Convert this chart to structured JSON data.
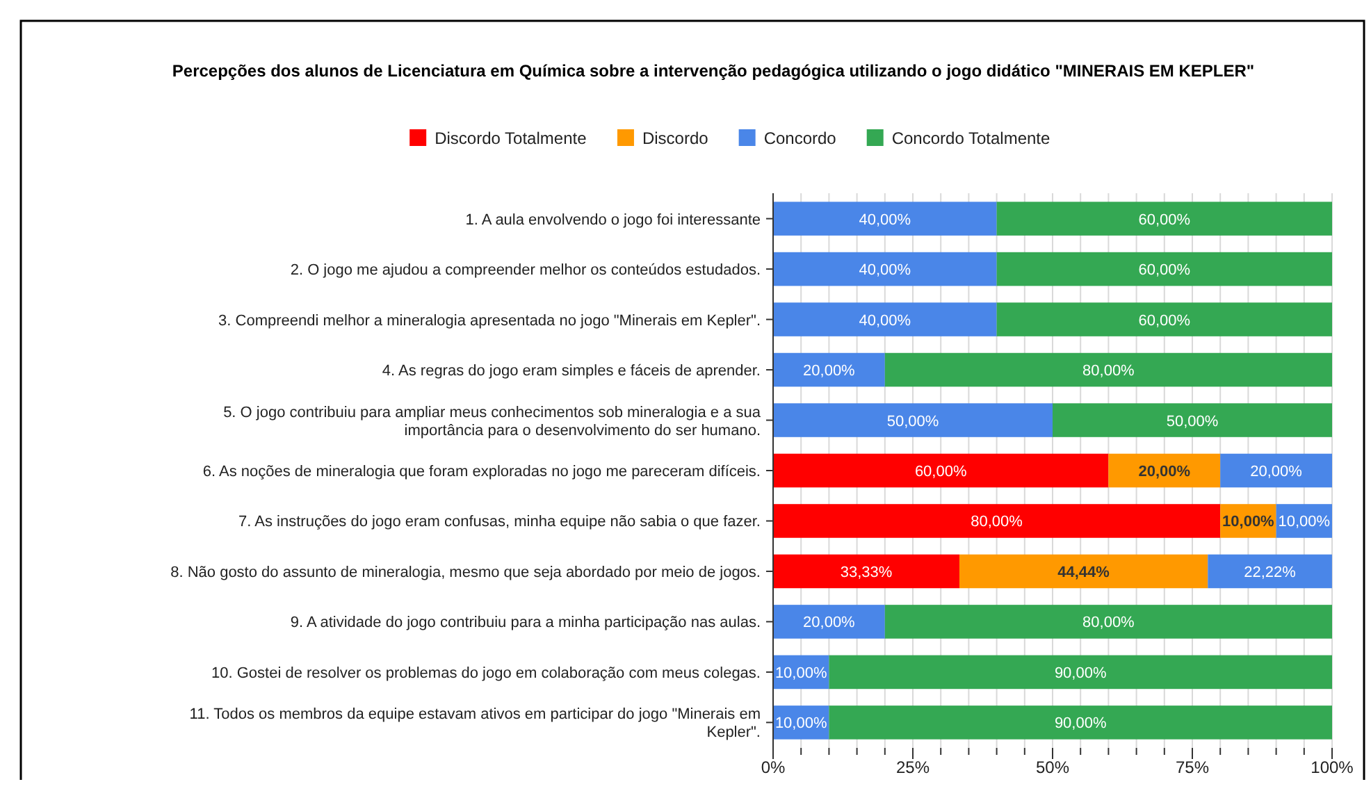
{
  "chart_data": {
    "type": "bar",
    "orientation": "horizontal",
    "stacked": true,
    "title": "Percepções dos alunos de Licenciatura em Química sobre a intervenção pedagógica utilizando o jogo didático \"MINERAIS EM KEPLER\"",
    "categories": [
      "1. A aula envolvendo o jogo foi interessante",
      "2. O jogo me ajudou a compreender melhor os conteúdos estudados.",
      "3. Compreendi melhor a mineralogia apresentada no jogo \"Minerais em Kepler\".",
      "4. As regras do jogo eram simples e fáceis de aprender.",
      "5. O jogo contribuiu para ampliar meus conhecimentos sob mineralogia e a sua importância para o desenvolvimento do ser humano.",
      "6. As noções de mineralogia que foram exploradas no jogo me pareceram difíceis.",
      "7. As instruções do jogo eram confusas, minha equipe não sabia o que fazer.",
      "8. Não gosto do assunto de mineralogia, mesmo que seja abordado por meio de jogos.",
      "9. A atividade do jogo contribuiu para a minha participação nas aulas.",
      "10. Gostei de resolver os problemas do jogo em colaboração com meus colegas.",
      "11. Todos os membros da equipe estavam ativos em participar do jogo \"Minerais em Kepler\"."
    ],
    "series": [
      {
        "name": "Discordo Totalmente",
        "color": "#ff0000",
        "values": [
          null,
          null,
          null,
          null,
          null,
          60,
          80,
          33.33,
          null,
          null,
          null
        ],
        "value_labels": [
          null,
          null,
          null,
          null,
          null,
          "60,00%",
          "80,00%",
          "33,33%",
          null,
          null,
          null
        ]
      },
      {
        "name": "Discordo",
        "color": "#ff9900",
        "values": [
          null,
          null,
          null,
          null,
          null,
          20,
          10,
          44.44,
          null,
          null,
          null
        ],
        "value_labels": [
          null,
          null,
          null,
          null,
          null,
          "20,00%",
          "10,00%",
          "44,44%",
          null,
          null,
          null
        ]
      },
      {
        "name": "Concordo",
        "color": "#4a86e8",
        "values": [
          40,
          40,
          40,
          20,
          50,
          20,
          10,
          22.22,
          20,
          10,
          10
        ],
        "value_labels": [
          "40,00%",
          "40,00%",
          "40,00%",
          "20,00%",
          "50,00%",
          "20,00%",
          "10,00%",
          "22,22%",
          "20,00%",
          "10,00%",
          "10,00%"
        ]
      },
      {
        "name": "Concordo Totalmente",
        "color": "#34a853",
        "values": [
          60,
          60,
          60,
          80,
          50,
          null,
          null,
          null,
          80,
          90,
          90
        ],
        "value_labels": [
          "60,00%",
          "60,00%",
          "60,00%",
          "80,00%",
          "50,00%",
          null,
          null,
          null,
          "80,00%",
          "90,00%",
          "90,00%"
        ]
      }
    ],
    "xlim": [
      0,
      100
    ],
    "xticks": [
      {
        "value": 0,
        "label": "0%"
      },
      {
        "value": 5,
        "label": null
      },
      {
        "value": 10,
        "label": null
      },
      {
        "value": 15,
        "label": null
      },
      {
        "value": 20,
        "label": null
      },
      {
        "value": 25,
        "label": "25%"
      },
      {
        "value": 30,
        "label": null
      },
      {
        "value": 35,
        "label": null
      },
      {
        "value": 40,
        "label": null
      },
      {
        "value": 45,
        "label": null
      },
      {
        "value": 50,
        "label": "50%"
      },
      {
        "value": 55,
        "label": null
      },
      {
        "value": 60,
        "label": null
      },
      {
        "value": 65,
        "label": null
      },
      {
        "value": 70,
        "label": null
      },
      {
        "value": 75,
        "label": "75%"
      },
      {
        "value": 80,
        "label": null
      },
      {
        "value": 85,
        "label": null
      },
      {
        "value": 90,
        "label": null
      },
      {
        "value": 95,
        "label": null
      },
      {
        "value": 100,
        "label": "100%"
      }
    ],
    "grid": "x",
    "legend": "top"
  }
}
